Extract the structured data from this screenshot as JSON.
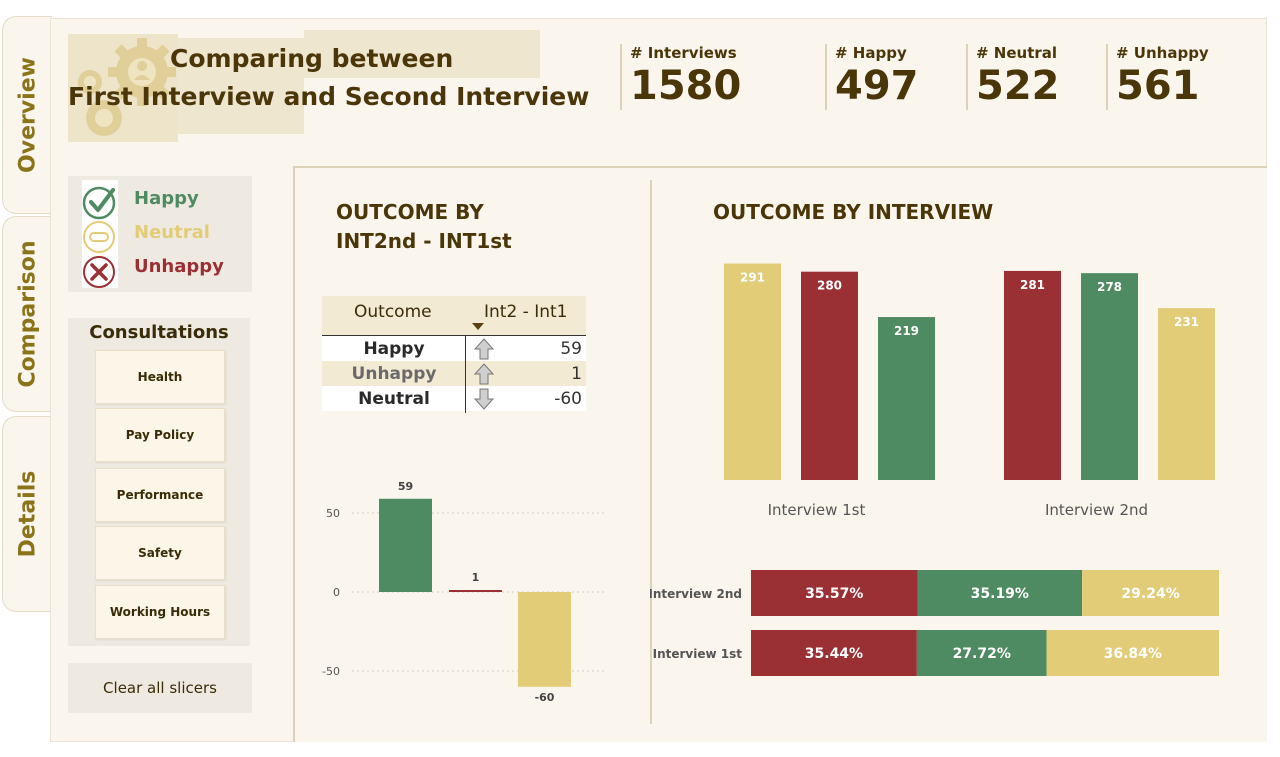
{
  "tabs": [
    {
      "label": "Overview"
    },
    {
      "label": "Comparison"
    },
    {
      "label": "Details"
    }
  ],
  "header": {
    "title_line1": "Comparing between",
    "title_line2": "First Interview and Second Interview"
  },
  "kpis": [
    {
      "label": "# Interviews",
      "value": "1580"
    },
    {
      "label": "# Happy",
      "value": "497"
    },
    {
      "label": "# Neutral",
      "value": "522"
    },
    {
      "label": "# Unhappy",
      "value": "561"
    }
  ],
  "legend": {
    "happy": "Happy",
    "neutral": "Neutral",
    "unhappy": "Unhappy"
  },
  "colors": {
    "happy": "#4e8a62",
    "neutral": "#e3cc77",
    "unhappy": "#9a3034",
    "text_dark": "#4a3608"
  },
  "consultations": {
    "title": "Consultations",
    "items": [
      "Health",
      "Pay Policy",
      "Performance",
      "Safety",
      "Working Hours"
    ]
  },
  "clear_label": "Clear all slicers",
  "diff_section": {
    "title_line1": "OUTCOME BY",
    "title_line2": "INT2nd - INT1st",
    "table": {
      "headers": [
        "Outcome",
        "Int2 - Int1"
      ],
      "rows": [
        {
          "outcome": "Happy",
          "direction": "up",
          "value": "59"
        },
        {
          "outcome": "Unhappy",
          "direction": "up",
          "value": "1"
        },
        {
          "outcome": "Neutral",
          "direction": "down",
          "value": "-60"
        }
      ]
    }
  },
  "interview_section": {
    "title": "OUTCOME BY INTERVIEW"
  },
  "chart_data": [
    {
      "type": "bar",
      "categories": [
        "Happy",
        "Unhappy",
        "Neutral"
      ],
      "values": [
        59,
        1,
        -60
      ],
      "yticks": [
        50,
        0,
        -50
      ],
      "ylim": [
        -60,
        60
      ],
      "grid": true
    },
    {
      "type": "bar",
      "categories": [
        "Interview 1st",
        "Interview 2nd"
      ],
      "series": [
        {
          "values": [
            291,
            231
          ],
          "color": "#e3cc77"
        },
        {
          "values": [
            280,
            281
          ],
          "color": "#9a3034"
        },
        {
          "values": [
            219,
            278
          ],
          "color": "#4e8a62"
        }
      ],
      "bar_order": [
        [
          "Neutral",
          "Unhappy",
          "Happy"
        ],
        [
          "Unhappy",
          "Happy",
          "Neutral"
        ]
      ],
      "bar_values": [
        [
          291,
          280,
          219
        ],
        [
          281,
          278,
          231
        ]
      ],
      "ylim": [
        0,
        300
      ]
    },
    {
      "type": "bar",
      "orientation": "horizontal-stacked-100",
      "categories": [
        "Interview 2nd",
        "Interview 1st"
      ],
      "series": [
        {
          "values": [
            35.57,
            35.44
          ],
          "labels": [
            "35.57%",
            "35.44%"
          ],
          "color": "#9a3034"
        },
        {
          "values": [
            35.19,
            27.72
          ],
          "labels": [
            "35.19%",
            "27.72%"
          ],
          "color": "#4e8a62"
        },
        {
          "values": [
            29.24,
            36.84
          ],
          "labels": [
            "29.24%",
            "36.84%"
          ],
          "color": "#e3cc77"
        }
      ]
    }
  ]
}
